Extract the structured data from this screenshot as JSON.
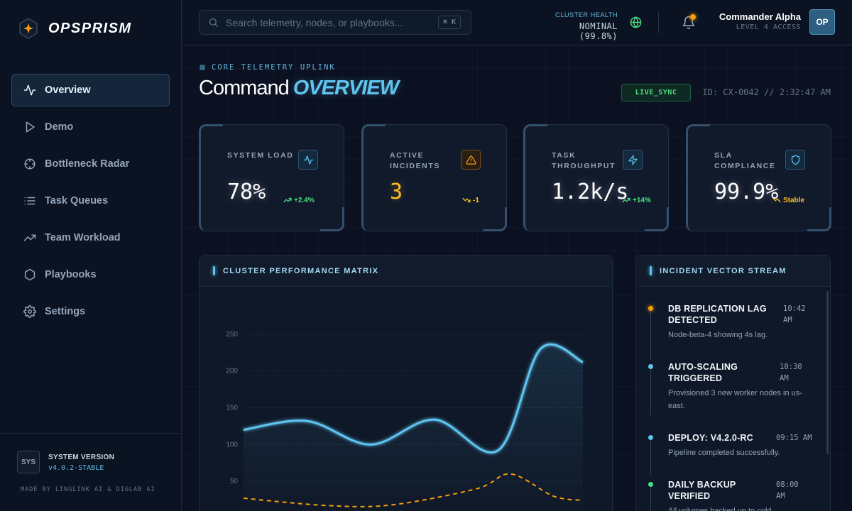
{
  "brand": {
    "name": "OPSPRISM"
  },
  "nav": [
    {
      "label": "Overview",
      "icon": "activity-icon",
      "active": true
    },
    {
      "label": "Demo",
      "icon": "play-icon"
    },
    {
      "label": "Bottleneck Radar",
      "icon": "crosshair-icon"
    },
    {
      "label": "Task Queues",
      "icon": "list-icon"
    },
    {
      "label": "Team Workload",
      "icon": "trending-up-icon"
    },
    {
      "label": "Playbooks",
      "icon": "hexagon-icon"
    },
    {
      "label": "Settings",
      "icon": "gear-icon"
    }
  ],
  "footer": {
    "badge": "SYS",
    "title": "SYSTEM VERSION",
    "version": "v4.0.2-STABLE",
    "credit": "MADE BY LINGLINK AI & DIGLAB AI"
  },
  "topbar": {
    "search_placeholder": "Search telemetry, nodes, or playbooks...",
    "shortcut": "⌘ K",
    "health_label": "CLUSTER HEALTH",
    "health_value": "NOMINAL (99.8%)",
    "user_name": "Commander Alpha",
    "user_role": "LEVEL 4 ACCESS",
    "avatar": "OP"
  },
  "header": {
    "eyebrow": "CORE TELEMETRY UPLINK",
    "title_a": "Command",
    "title_b": "OVERVIEW",
    "sync": "LIVE_SYNC",
    "id_line": "ID: CX-0042 // 2:32:47 AM"
  },
  "kpis": [
    {
      "label": "SYSTEM LOAD",
      "value": "78%",
      "delta": "+2.4%",
      "trend": "up",
      "icon": "activity-icon"
    },
    {
      "label": "ACTIVE INCIDENTS",
      "value": "3",
      "delta": "-1",
      "trend": "down",
      "icon": "alert-triangle-icon"
    },
    {
      "label": "TASK THROUGHPUT",
      "value": "1.2k/s",
      "delta": "+14%",
      "trend": "up",
      "icon": "zap-icon"
    },
    {
      "label": "SLA COMPLIANCE",
      "value": "99.9%",
      "delta": "Stable",
      "trend": "flat",
      "icon": "shield-icon"
    }
  ],
  "colors": {
    "accent": "#5fc4ef",
    "warning": "#fbbf24",
    "success": "#4ade80"
  },
  "chart_panel": {
    "title": "CLUSTER PERFORMANCE MATRIX"
  },
  "chart_data": {
    "type": "line",
    "title": "CLUSTER PERFORMANCE MATRIX",
    "y_ticks": [
      50,
      100,
      150,
      200,
      250
    ],
    "ylim": [
      0,
      275
    ],
    "grid": true,
    "x": [
      0,
      1,
      2,
      3,
      4,
      5,
      6,
      7
    ],
    "series": [
      {
        "values": [
          120,
          132,
          100,
          134,
          92,
          230,
          212
        ],
        "x": [
          0,
          1.5,
          3,
          4.5,
          6,
          7,
          8
        ],
        "color": "#5fc4ef",
        "style": "solid"
      },
      {
        "values": [
          27,
          17,
          18,
          40,
          60,
          30,
          24
        ],
        "x": [
          0,
          2,
          3.5,
          5.5,
          6.3,
          7.3,
          8
        ],
        "color": "#f59e0b",
        "style": "dashed"
      }
    ]
  },
  "stream_panel": {
    "title": "INCIDENT VECTOR STREAM"
  },
  "incidents": [
    {
      "title": "DB REPLICATION LAG DETECTED",
      "time": "10:42 AM",
      "desc": "Node-beta-4 showing 4s lag.",
      "color": "#f59e0b"
    },
    {
      "title": "AUTO-SCALING TRIGGERED",
      "time": "10:30 AM",
      "desc": "Provisioned 3 new worker nodes in us-east.",
      "color": "#5fc4ef"
    },
    {
      "title": "DEPLOY: V4.2.0-RC",
      "time": "09:15 AM",
      "desc": "Pipeline completed successfully.",
      "color": "#5fc4ef"
    },
    {
      "title": "DAILY BACKUP VERIFIED",
      "time": "08:00 AM",
      "desc": "All volumes backed up to cold",
      "color": "#4ade80"
    }
  ]
}
